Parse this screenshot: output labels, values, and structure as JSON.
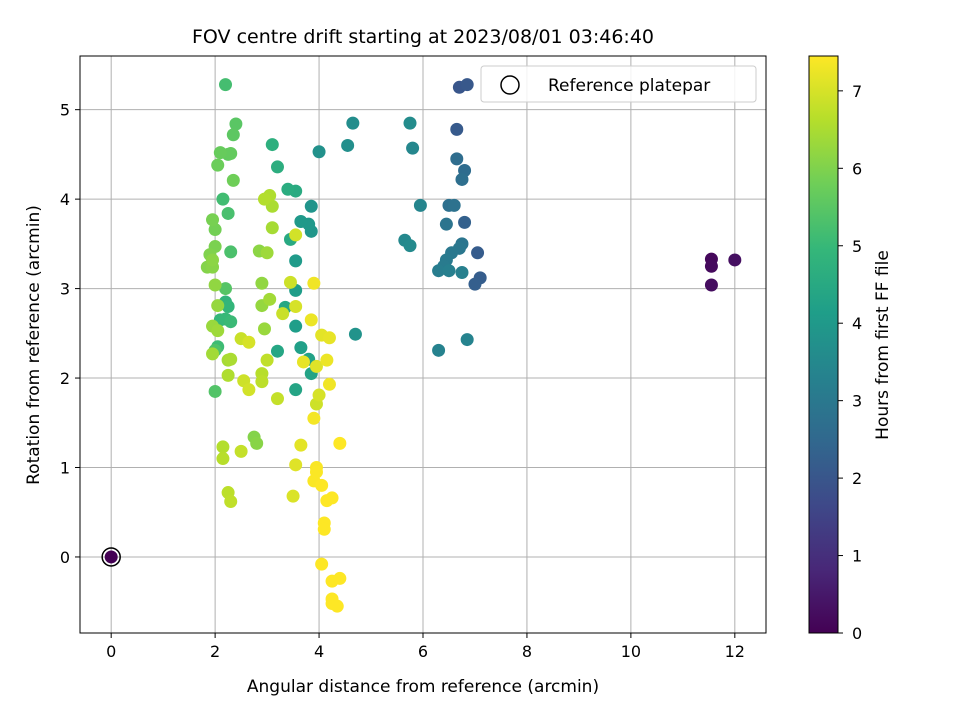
{
  "chart_data": {
    "type": "scatter",
    "title": "FOV centre drift starting at 2023/08/01 03:46:40",
    "xlabel": "Angular distance from reference (arcmin)",
    "ylabel": "Rotation from reference (arcmin)",
    "xlim": [
      -0.6,
      12.6
    ],
    "ylim": [
      -0.85,
      5.6
    ],
    "xticks": [
      0,
      2,
      4,
      6,
      8,
      10,
      12
    ],
    "yticks": [
      0,
      1,
      2,
      3,
      4,
      5
    ],
    "grid": true,
    "legend": {
      "placement": "top-right",
      "entries": [
        "Reference platepar"
      ]
    },
    "reference_point": {
      "x": 0,
      "y": 0
    },
    "colorbar": {
      "label": "Hours from first FF file",
      "colormap": "viridis",
      "range": [
        0,
        7.45
      ],
      "ticks": [
        0,
        1,
        2,
        3,
        4,
        5,
        6,
        7
      ]
    },
    "colormap_stops": [
      "#440154",
      "#482878",
      "#3e4989",
      "#31688e",
      "#26828e",
      "#1f9e89",
      "#35b779",
      "#6ece58",
      "#b5de2b",
      "#fde725"
    ],
    "series": [
      {
        "points": [
          [
            0,
            0,
            0
          ],
          [
            11.55,
            3.33,
            0.15
          ],
          [
            11.55,
            3.25,
            0.2
          ],
          [
            11.55,
            3.04,
            0.25
          ],
          [
            12.0,
            3.32,
            0.3
          ],
          [
            6.7,
            5.25,
            2.0
          ],
          [
            6.85,
            5.28,
            2.05
          ],
          [
            6.65,
            4.78,
            2.1
          ],
          [
            7.05,
            3.4,
            2.15
          ],
          [
            7.1,
            3.12,
            2.2
          ],
          [
            7.0,
            3.05,
            2.25
          ],
          [
            6.8,
            3.74,
            2.3
          ],
          [
            6.8,
            4.32,
            2.6
          ],
          [
            6.65,
            4.45,
            2.65
          ],
          [
            6.75,
            4.22,
            2.7
          ],
          [
            6.5,
            3.93,
            2.75
          ],
          [
            6.6,
            3.93,
            2.8
          ],
          [
            6.45,
            3.72,
            2.85
          ],
          [
            6.75,
            3.5,
            2.9
          ],
          [
            6.7,
            3.45,
            2.95
          ],
          [
            6.55,
            3.4,
            3.0
          ],
          [
            6.45,
            3.32,
            3.05
          ],
          [
            6.4,
            3.25,
            3.1
          ],
          [
            6.3,
            3.2,
            3.15
          ],
          [
            6.5,
            3.2,
            3.2
          ],
          [
            6.75,
            3.18,
            3.25
          ],
          [
            6.3,
            2.31,
            3.3
          ],
          [
            6.85,
            2.43,
            3.35
          ],
          [
            5.95,
            3.93,
            3.4
          ],
          [
            5.8,
            4.57,
            3.45
          ],
          [
            5.65,
            3.54,
            3.5
          ],
          [
            5.75,
            3.48,
            3.55
          ],
          [
            5.75,
            4.85,
            3.6
          ],
          [
            4.65,
            4.85,
            3.65
          ],
          [
            4.55,
            4.6,
            3.7
          ],
          [
            4.0,
            4.53,
            3.75
          ],
          [
            4.7,
            2.49,
            3.8
          ],
          [
            3.85,
            3.92,
            3.85
          ],
          [
            3.85,
            3.64,
            3.9
          ],
          [
            3.8,
            3.72,
            3.95
          ],
          [
            3.65,
            3.75,
            4.0
          ],
          [
            3.55,
            3.31,
            4.05
          ],
          [
            3.55,
            2.98,
            4.1
          ],
          [
            3.55,
            2.58,
            4.15
          ],
          [
            3.65,
            2.34,
            4.2
          ],
          [
            3.8,
            2.21,
            4.25
          ],
          [
            3.85,
            2.05,
            4.3
          ],
          [
            3.55,
            1.87,
            4.35
          ],
          [
            3.2,
            2.3,
            4.4
          ],
          [
            3.35,
            2.79,
            4.45
          ],
          [
            3.45,
            3.55,
            4.5
          ],
          [
            3.55,
            4.09,
            4.55
          ],
          [
            3.4,
            4.11,
            4.6
          ],
          [
            3.2,
            4.36,
            4.65
          ],
          [
            3.1,
            4.61,
            4.7
          ],
          [
            2.2,
            2.85,
            4.85
          ],
          [
            2.25,
            2.8,
            4.9
          ],
          [
            2.1,
            2.65,
            4.95
          ],
          [
            2.2,
            2.66,
            5.0
          ],
          [
            2.3,
            2.63,
            5.05
          ],
          [
            2.05,
            2.35,
            5.1
          ],
          [
            2.15,
            4.0,
            5.15
          ],
          [
            2.2,
            5.28,
            5.2
          ],
          [
            2.25,
            3.84,
            5.25
          ],
          [
            2.3,
            3.41,
            5.3
          ],
          [
            2.0,
            2.31,
            5.35
          ],
          [
            2.0,
            1.85,
            5.4
          ],
          [
            2.2,
            3.0,
            5.45
          ],
          [
            2.4,
            4.84,
            5.5
          ],
          [
            2.35,
            4.72,
            5.55
          ],
          [
            2.25,
            4.5,
            5.6
          ],
          [
            2.3,
            4.51,
            5.65
          ],
          [
            2.1,
            4.52,
            5.7
          ],
          [
            2.05,
            4.38,
            5.75
          ],
          [
            2.35,
            4.21,
            5.8
          ],
          [
            2.0,
            3.66,
            5.85
          ],
          [
            1.95,
            3.77,
            5.9
          ],
          [
            2.0,
            3.47,
            5.95
          ],
          [
            1.9,
            3.38,
            6.0
          ],
          [
            1.85,
            3.24,
            6.05
          ],
          [
            1.95,
            3.24,
            6.1
          ],
          [
            1.95,
            3.32,
            6.15
          ],
          [
            2.0,
            3.04,
            6.2
          ],
          [
            2.05,
            2.81,
            6.25
          ],
          [
            1.95,
            2.58,
            6.3
          ],
          [
            2.05,
            2.53,
            6.35
          ],
          [
            1.95,
            2.27,
            6.4
          ],
          [
            2.25,
            2.2,
            6.45
          ],
          [
            2.3,
            2.21,
            6.5
          ],
          [
            2.25,
            2.03,
            6.55
          ],
          [
            2.15,
            1.23,
            6.6
          ],
          [
            2.15,
            1.1,
            6.65
          ],
          [
            2.25,
            0.72,
            6.7
          ],
          [
            2.3,
            0.62,
            6.75
          ],
          [
            2.5,
            1.18,
            6.8
          ],
          [
            2.5,
            2.44,
            6.85
          ],
          [
            2.55,
            1.97,
            6.9
          ],
          [
            2.65,
            1.87,
            6.95
          ],
          [
            2.65,
            2.4,
            7.0
          ],
          [
            2.75,
            1.34,
            6.05
          ],
          [
            2.8,
            1.27,
            6.1
          ],
          [
            2.85,
            3.42,
            6.15
          ],
          [
            2.9,
            3.06,
            6.2
          ],
          [
            2.9,
            2.81,
            6.25
          ],
          [
            2.95,
            2.55,
            6.3
          ],
          [
            3.0,
            3.4,
            6.35
          ],
          [
            3.05,
            2.88,
            6.4
          ],
          [
            3.1,
            3.68,
            6.45
          ],
          [
            3.1,
            3.92,
            6.5
          ],
          [
            3.05,
            4.04,
            6.55
          ],
          [
            2.95,
            4.0,
            6.6
          ],
          [
            2.9,
            2.05,
            6.65
          ],
          [
            2.9,
            1.96,
            6.7
          ],
          [
            3.0,
            2.2,
            6.75
          ],
          [
            3.2,
            1.77,
            6.8
          ],
          [
            3.3,
            2.72,
            6.85
          ],
          [
            3.45,
            3.07,
            6.9
          ],
          [
            3.55,
            3.6,
            6.95
          ],
          [
            3.55,
            2.8,
            7.0
          ],
          [
            3.5,
            0.68,
            7.05
          ],
          [
            3.55,
            1.03,
            7.1
          ],
          [
            3.65,
            1.25,
            7.15
          ],
          [
            3.7,
            2.18,
            7.2
          ],
          [
            3.85,
            2.65,
            7.25
          ],
          [
            3.9,
            3.06,
            7.3
          ],
          [
            3.95,
            1.71,
            6.9
          ],
          [
            4.0,
            1.81,
            7.0
          ],
          [
            3.95,
            2.13,
            7.1
          ],
          [
            4.05,
            2.48,
            7.15
          ],
          [
            4.2,
            2.45,
            7.2
          ],
          [
            4.15,
            2.2,
            7.25
          ],
          [
            4.2,
            1.93,
            7.3
          ],
          [
            3.9,
            1.55,
            7.35
          ],
          [
            3.95,
            1.0,
            7.4
          ],
          [
            3.9,
            0.85,
            7.42
          ],
          [
            3.95,
            0.95,
            7.42
          ],
          [
            4.05,
            0.8,
            7.45
          ],
          [
            4.15,
            0.63,
            7.45
          ],
          [
            4.25,
            0.66,
            7.45
          ],
          [
            4.4,
            1.27,
            7.45
          ],
          [
            4.1,
            0.38,
            7.45
          ],
          [
            4.1,
            0.31,
            7.45
          ],
          [
            4.05,
            -0.08,
            7.45
          ],
          [
            4.25,
            -0.27,
            7.45
          ],
          [
            4.4,
            -0.24,
            7.45
          ],
          [
            4.25,
            -0.47,
            7.45
          ],
          [
            4.25,
            -0.52,
            7.45
          ],
          [
            4.35,
            -0.55,
            7.45
          ]
        ]
      }
    ]
  }
}
